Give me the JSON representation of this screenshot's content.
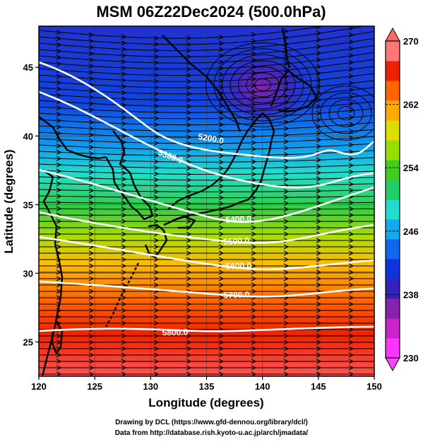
{
  "title": "MSM 06Z22Dec2024 (500.0hPa)",
  "map": {
    "lon_range": [
      120,
      150
    ],
    "lat_range": [
      22.5,
      48
    ],
    "lon_ticks": [
      "120",
      "125",
      "130",
      "135",
      "140",
      "145",
      "150"
    ],
    "lat_ticks": [
      "25",
      "30",
      "35",
      "40",
      "45"
    ],
    "xlabel": "Longitude (degrees)",
    "ylabel": "Latitude  (degrees)",
    "contour_labels": [
      "5200.0",
      "5300.0",
      "5400.0",
      "5500.0",
      "5600.0",
      "5700.0",
      "5800.0"
    ],
    "colorbar": {
      "min": 230,
      "max": 270,
      "ticks": [
        "230",
        "238",
        "246",
        "254",
        "262",
        "270"
      ],
      "colors": [
        "#ff33ff",
        "#cc22cc",
        "#8822aa",
        "#3322bb",
        "#1133dd",
        "#1166ee",
        "#11aaee",
        "#22ddcc",
        "#22cc66",
        "#44cc22",
        "#99dd00",
        "#dddd00",
        "#ffaa00",
        "#ff6600",
        "#ee2200",
        "#ff7777"
      ]
    }
  },
  "footer": {
    "line1": "Drawing by DCL (https://www.gfd-dennou.org/library/dcl/)",
    "line2": "Data from http://database.rish.kyoto-u.ac.jp/arch/jmadata/"
  }
}
